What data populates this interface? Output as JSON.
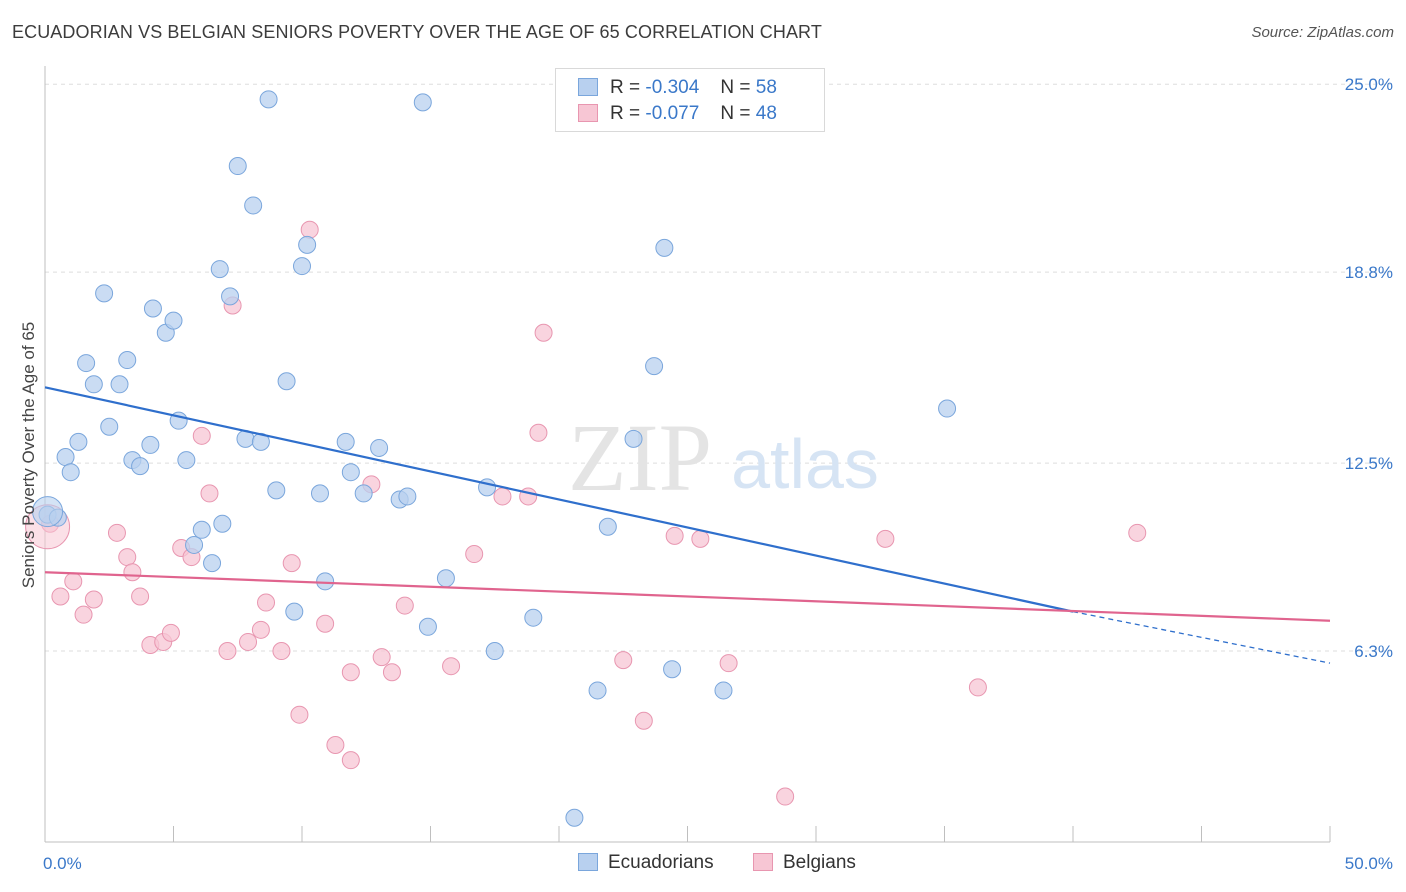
{
  "title": "ECUADORIAN VS BELGIAN SENIORS POVERTY OVER THE AGE OF 65 CORRELATION CHART",
  "source": "Source: ZipAtlas.com",
  "watermark": {
    "zip": "ZIP",
    "atlas": "atlas"
  },
  "legend": {
    "r_label": "R =",
    "n_label": "N =",
    "rows": [
      {
        "r": "-0.304",
        "n": "58"
      },
      {
        "r": "-0.077",
        "n": "48"
      }
    ]
  },
  "colors": {
    "ecuadorian_fill": "#b8d0ef",
    "ecuadorian_stroke": "#7aa6dc",
    "ecuadorian_line": "#2f6fcc",
    "belgian_fill": "#f7c6d4",
    "belgian_stroke": "#e896b0",
    "belgian_line": "#e0648e",
    "tick_label": "#3a78c9",
    "grid": "#dddddd"
  },
  "chart_data": {
    "type": "scatter",
    "title": "ECUADORIAN VS BELGIAN SENIORS POVERTY OVER THE AGE OF 65 CORRELATION CHART",
    "xlabel": "",
    "ylabel": "Seniors Poverty Over the Age of 65",
    "xlim": [
      0,
      50
    ],
    "ylim": [
      0,
      25.6
    ],
    "x_tick_labels": [
      "0.0%",
      "50.0%"
    ],
    "y_ticks": [
      6.3,
      12.5,
      18.8,
      25.0
    ],
    "y_tick_labels": [
      "6.3%",
      "12.5%",
      "18.8%",
      "25.0%"
    ],
    "grid": true,
    "legend_position": "top-center",
    "series": [
      {
        "name": "Ecuadorians",
        "color": "#b8d0ef",
        "trend": {
          "x0": 0,
          "y0": 15.0,
          "x1": 40,
          "y1": 7.6,
          "dashed_to_x": 50,
          "dashed_to_y": 5.9
        },
        "points": [
          [
            0.1,
            10.8
          ],
          [
            0.5,
            10.7
          ],
          [
            0.8,
            12.7
          ],
          [
            1.0,
            12.2
          ],
          [
            1.3,
            13.2
          ],
          [
            1.6,
            15.8
          ],
          [
            1.9,
            15.1
          ],
          [
            2.3,
            18.1
          ],
          [
            2.5,
            13.7
          ],
          [
            2.9,
            15.1
          ],
          [
            3.2,
            15.9
          ],
          [
            3.4,
            12.6
          ],
          [
            3.7,
            12.4
          ],
          [
            4.1,
            13.1
          ],
          [
            4.2,
            17.6
          ],
          [
            4.7,
            16.8
          ],
          [
            5.0,
            17.2
          ],
          [
            5.2,
            13.9
          ],
          [
            5.5,
            12.6
          ],
          [
            5.8,
            9.8
          ],
          [
            6.1,
            10.3
          ],
          [
            6.5,
            9.2
          ],
          [
            6.9,
            10.5
          ],
          [
            6.8,
            18.9
          ],
          [
            7.2,
            18.0
          ],
          [
            7.5,
            22.3
          ],
          [
            7.8,
            13.3
          ],
          [
            8.1,
            21.0
          ],
          [
            8.4,
            13.2
          ],
          [
            8.7,
            24.5
          ],
          [
            9.0,
            11.6
          ],
          [
            9.4,
            15.2
          ],
          [
            9.7,
            7.6
          ],
          [
            10.0,
            19.0
          ],
          [
            10.2,
            19.7
          ],
          [
            10.7,
            11.5
          ],
          [
            10.9,
            8.6
          ],
          [
            11.7,
            13.2
          ],
          [
            11.9,
            12.2
          ],
          [
            12.4,
            11.5
          ],
          [
            13.0,
            13.0
          ],
          [
            13.8,
            11.3
          ],
          [
            14.1,
            11.4
          ],
          [
            14.7,
            24.4
          ],
          [
            14.9,
            7.1
          ],
          [
            15.6,
            8.7
          ],
          [
            17.2,
            11.7
          ],
          [
            17.5,
            6.3
          ],
          [
            19.0,
            7.4
          ],
          [
            20.6,
            0.8
          ],
          [
            21.5,
            5.0
          ],
          [
            21.9,
            10.4
          ],
          [
            22.9,
            13.3
          ],
          [
            23.7,
            15.7
          ],
          [
            24.1,
            19.6
          ],
          [
            24.4,
            5.7
          ],
          [
            26.4,
            5.0
          ],
          [
            35.1,
            14.3
          ]
        ]
      },
      {
        "name": "Belgians",
        "color": "#f7c6d4",
        "trend": {
          "x0": 0,
          "y0": 8.9,
          "x1": 50,
          "y1": 7.3
        },
        "points": [
          [
            0.2,
            10.5
          ],
          [
            0.6,
            8.1
          ],
          [
            1.1,
            8.6
          ],
          [
            1.5,
            7.5
          ],
          [
            1.9,
            8.0
          ],
          [
            2.8,
            10.2
          ],
          [
            3.2,
            9.4
          ],
          [
            3.4,
            8.9
          ],
          [
            3.7,
            8.1
          ],
          [
            4.1,
            6.5
          ],
          [
            4.6,
            6.6
          ],
          [
            4.9,
            6.9
          ],
          [
            5.3,
            9.7
          ],
          [
            5.7,
            9.4
          ],
          [
            6.1,
            13.4
          ],
          [
            6.4,
            11.5
          ],
          [
            7.1,
            6.3
          ],
          [
            7.3,
            17.7
          ],
          [
            7.9,
            6.6
          ],
          [
            8.4,
            7.0
          ],
          [
            8.6,
            7.9
          ],
          [
            9.2,
            6.3
          ],
          [
            9.6,
            9.2
          ],
          [
            9.9,
            4.2
          ],
          [
            10.3,
            20.2
          ],
          [
            10.9,
            7.2
          ],
          [
            11.3,
            3.2
          ],
          [
            11.9,
            2.7
          ],
          [
            11.9,
            5.6
          ],
          [
            12.7,
            11.8
          ],
          [
            13.1,
            6.1
          ],
          [
            13.5,
            5.6
          ],
          [
            14.0,
            7.8
          ],
          [
            15.8,
            5.8
          ],
          [
            16.7,
            9.5
          ],
          [
            17.8,
            11.4
          ],
          [
            18.8,
            11.4
          ],
          [
            19.2,
            13.5
          ],
          [
            19.4,
            16.8
          ],
          [
            22.5,
            6.0
          ],
          [
            23.3,
            4.0
          ],
          [
            24.5,
            10.1
          ],
          [
            25.5,
            10.0
          ],
          [
            26.6,
            5.9
          ],
          [
            28.8,
            1.5
          ],
          [
            32.7,
            10.0
          ],
          [
            36.3,
            5.1
          ],
          [
            42.5,
            10.2
          ]
        ]
      }
    ]
  },
  "bottom_legend": [
    "Ecuadorians",
    "Belgians"
  ]
}
